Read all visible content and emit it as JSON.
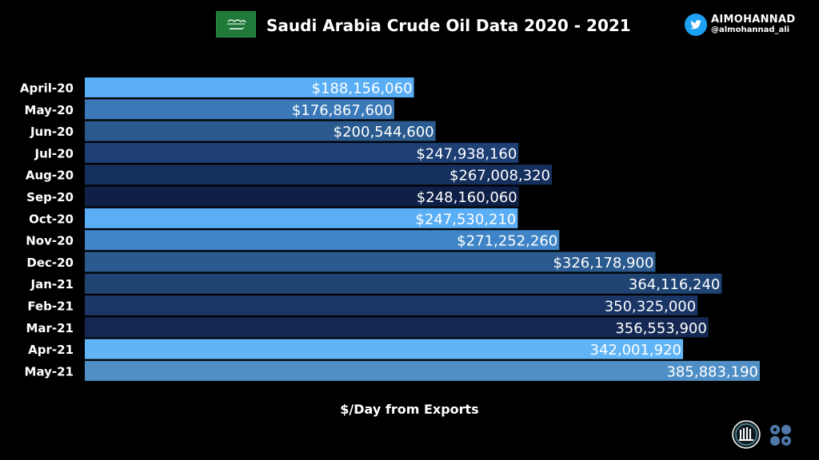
{
  "header": {
    "title": "Saudi Arabia Crude Oil Data 2020 - 2021",
    "brand_name": "AIMOHANNAD",
    "brand_handle": "@almohannad_ali"
  },
  "icons": {
    "flag": "saudi-arabia-flag-icon",
    "brand": "twitter-bird-icon",
    "logo_left": "round-seal-logo",
    "logo_right": "opec-logo"
  },
  "colors": {
    "background": "#000000",
    "text": "#ffffff",
    "twitter": "#1da1f2",
    "flag_green": "#1f7a3a"
  },
  "chart_data": {
    "type": "bar",
    "orientation": "horizontal",
    "title": "Saudi Arabia Crude Oil Data 2020 - 2021",
    "xlabel": "$/Day from Exports",
    "ylabel": "",
    "grid": false,
    "legend": "none",
    "xlim": [
      0,
      385883190
    ],
    "categories": [
      "April-20",
      "May-20",
      "Jun-20",
      "Jul-20",
      "Aug-20",
      "Sep-20",
      "Oct-20",
      "Nov-20",
      "Dec-20",
      "Jan-21",
      "Feb-21",
      "Mar-21",
      "Apr-21",
      "May-21"
    ],
    "values": [
      188156060,
      176867600,
      200544600,
      247938160,
      267008320,
      248160060,
      247530210,
      271252260,
      326178900,
      364116240,
      350325000,
      356553900,
      342001920,
      385883190
    ],
    "labels": [
      "$188,156,060",
      "$176,867,600",
      "$200,544,600",
      "$247,938,160",
      "$267,008,320",
      "$248,160,060",
      "$247,530,210",
      "$271,252,260",
      "$326,178,900",
      "364,116,240",
      "350,325,000",
      "356,553,900",
      "342,001,920",
      "385,883,190"
    ],
    "bar_colors": [
      "#5aaef5",
      "#3a78b8",
      "#2a5a8e",
      "#1d3f73",
      "#16305e",
      "#0f2046",
      "#5aaef5",
      "#3f84c6",
      "#2a5a8e",
      "#1f4474",
      "#1a3566",
      "#142853",
      "#61b5f7",
      "#4f8fc6"
    ]
  }
}
